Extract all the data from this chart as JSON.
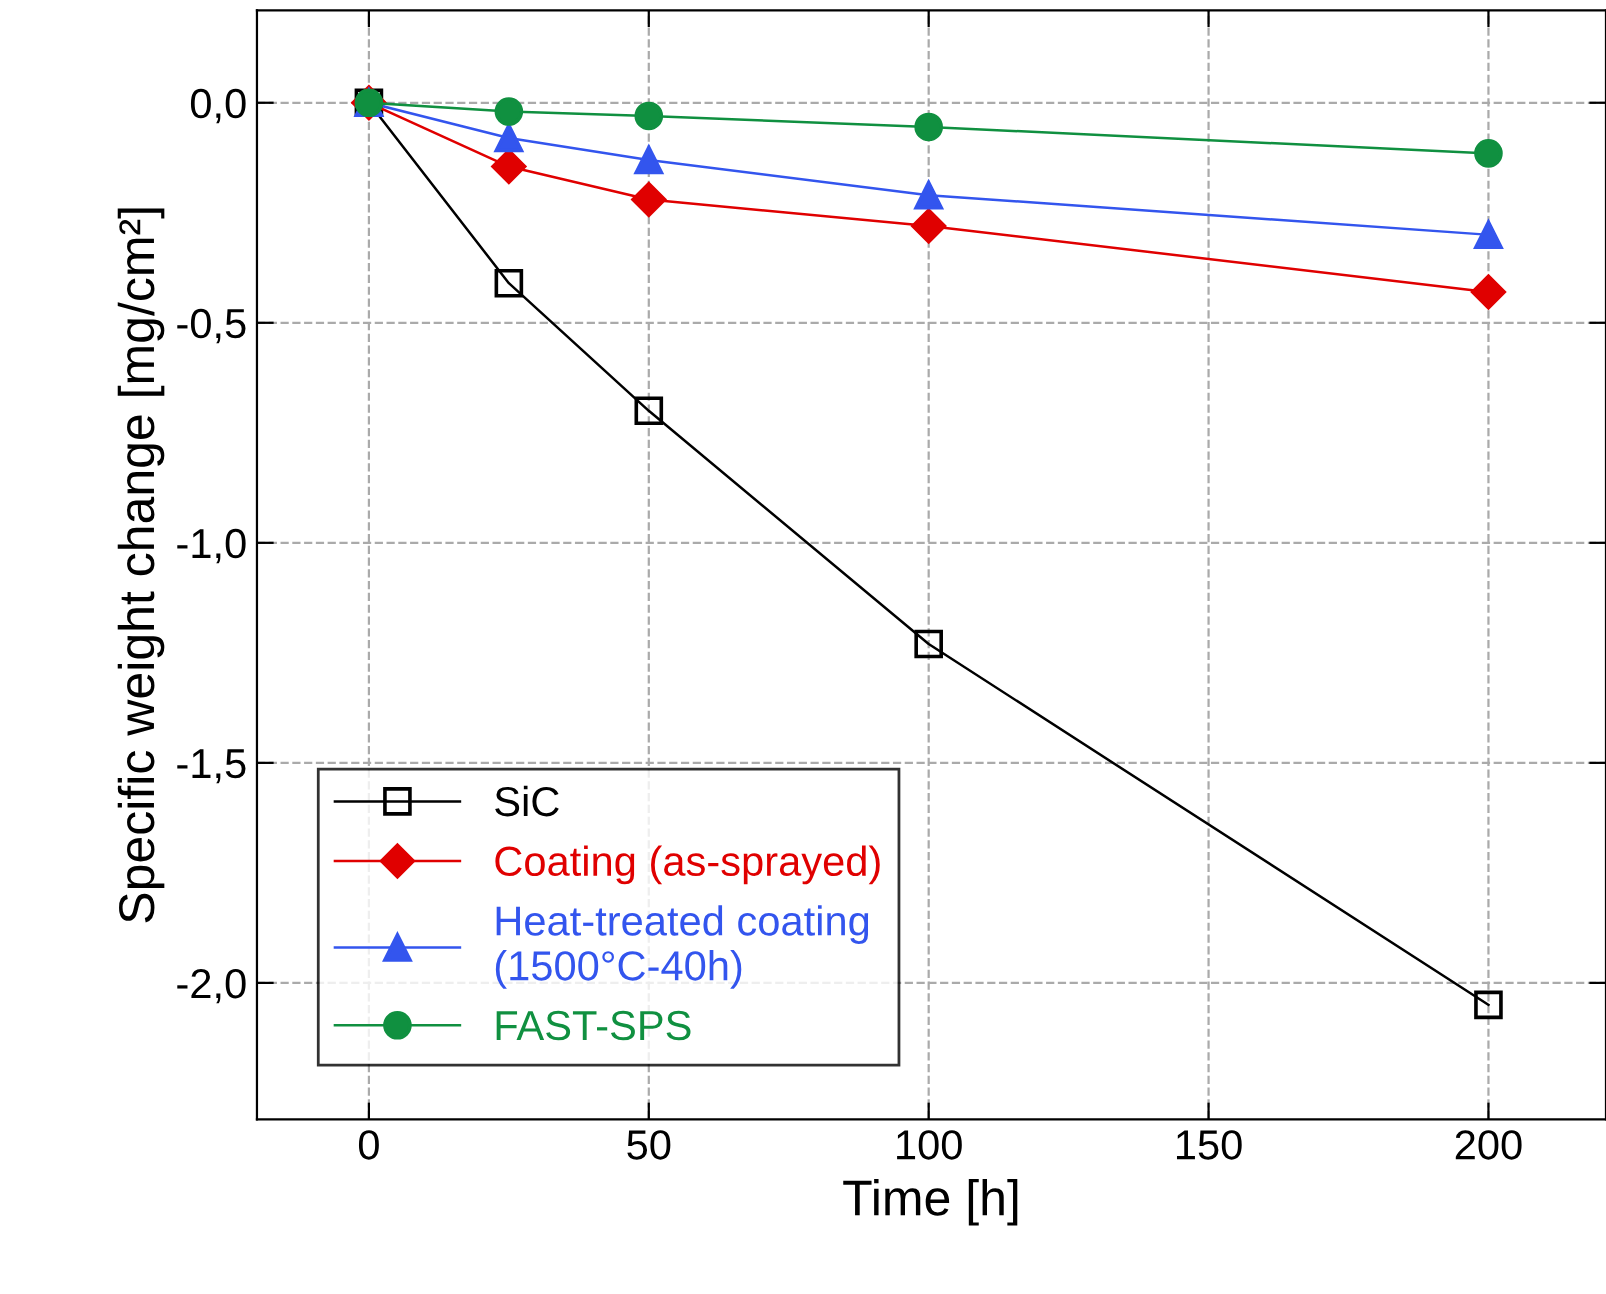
{
  "chart_data": {
    "type": "line",
    "xlabel": "Time [h]",
    "ylabel": "Specific weight change [mg/cm²]",
    "xlim": [
      -20,
      221
    ],
    "xticks": [
      0,
      50,
      100,
      150,
      200
    ],
    "ylim": [
      -2.31,
      0.21
    ],
    "yticks": [
      {
        "value": 0,
        "label": "0,0"
      },
      {
        "value": -0.5,
        "label": "-0,5"
      },
      {
        "value": -1.0,
        "label": "-1,0"
      },
      {
        "value": -1.5,
        "label": "-1,5"
      },
      {
        "value": -2.0,
        "label": "-2,0"
      }
    ],
    "grid": true,
    "legend": "bottom left",
    "line_style": "solid",
    "series": [
      {
        "name": "SiC",
        "color": "#000000",
        "marker": "square",
        "x": [
          0,
          25,
          50,
          100,
          200
        ],
        "values": [
          0,
          -0.41,
          -0.7,
          -1.23,
          -2.05
        ]
      },
      {
        "name": "Coating (as-sprayed)",
        "color": "#e00000",
        "marker": "diamond",
        "x": [
          0,
          25,
          50,
          100,
          200
        ],
        "values": [
          0,
          -0.145,
          -0.22,
          -0.28,
          -0.43
        ]
      },
      {
        "name": "Heat-treated coating\n(1500°C-40h)",
        "color": "#3355ee",
        "marker": "triangle",
        "x": [
          0,
          25,
          50,
          100,
          200
        ],
        "values": [
          0,
          -0.08,
          -0.13,
          -0.21,
          -0.3
        ]
      },
      {
        "name": "FAST-SPS",
        "color": "#109040",
        "marker": "circle",
        "x": [
          0,
          25,
          50,
          100,
          200
        ],
        "values": [
          0,
          -0.02,
          -0.03,
          -0.055,
          -0.115
        ]
      }
    ]
  }
}
